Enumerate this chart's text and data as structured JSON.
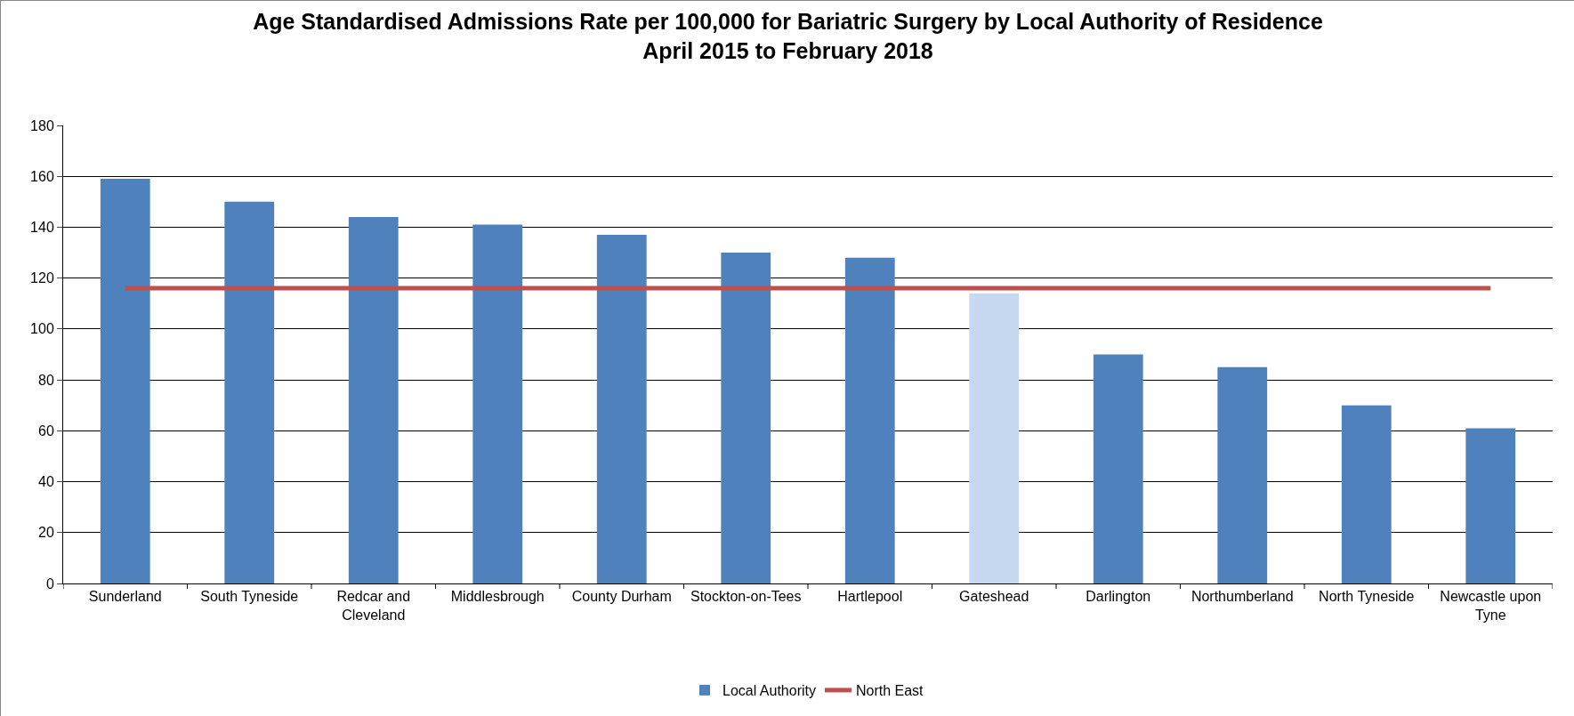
{
  "chart_data": {
    "type": "bar",
    "title": "Age Standardised Admissions Rate per 100,000 for Bariatric Surgery by Local Authority of Residence\nApril 2015 to February 2018",
    "categories": [
      "Sunderland",
      "South Tyneside",
      "Redcar and Cleveland",
      "Middlesbrough",
      "County Durham",
      "Stockton-on-Tees",
      "Hartlepool",
      "Gateshead",
      "Darlington",
      "Northumberland",
      "North Tyneside",
      "Newcastle upon Tyne"
    ],
    "series": [
      {
        "name": "Local Authority",
        "colors": [
          "#4f81bd",
          "#4f81bd",
          "#4f81bd",
          "#4f81bd",
          "#4f81bd",
          "#4f81bd",
          "#4f81bd",
          "#c6d9f0",
          "#4f81bd",
          "#4f81bd",
          "#4f81bd",
          "#4f81bd"
        ],
        "values": [
          159,
          150,
          144,
          141,
          137,
          130,
          128,
          114,
          90,
          85,
          70,
          61
        ]
      },
      {
        "name": "North East",
        "type": "line",
        "color": "#c0504d",
        "values": [
          116,
          116,
          116,
          116,
          116,
          116,
          116,
          116,
          116,
          116,
          116,
          116
        ]
      }
    ],
    "ylim": [
      0,
      180
    ],
    "yticks": [
      0,
      20,
      40,
      60,
      80,
      100,
      120,
      140,
      160,
      180
    ],
    "grid": "y",
    "legend": "bottom",
    "marker": "none",
    "line_style": "solid"
  }
}
